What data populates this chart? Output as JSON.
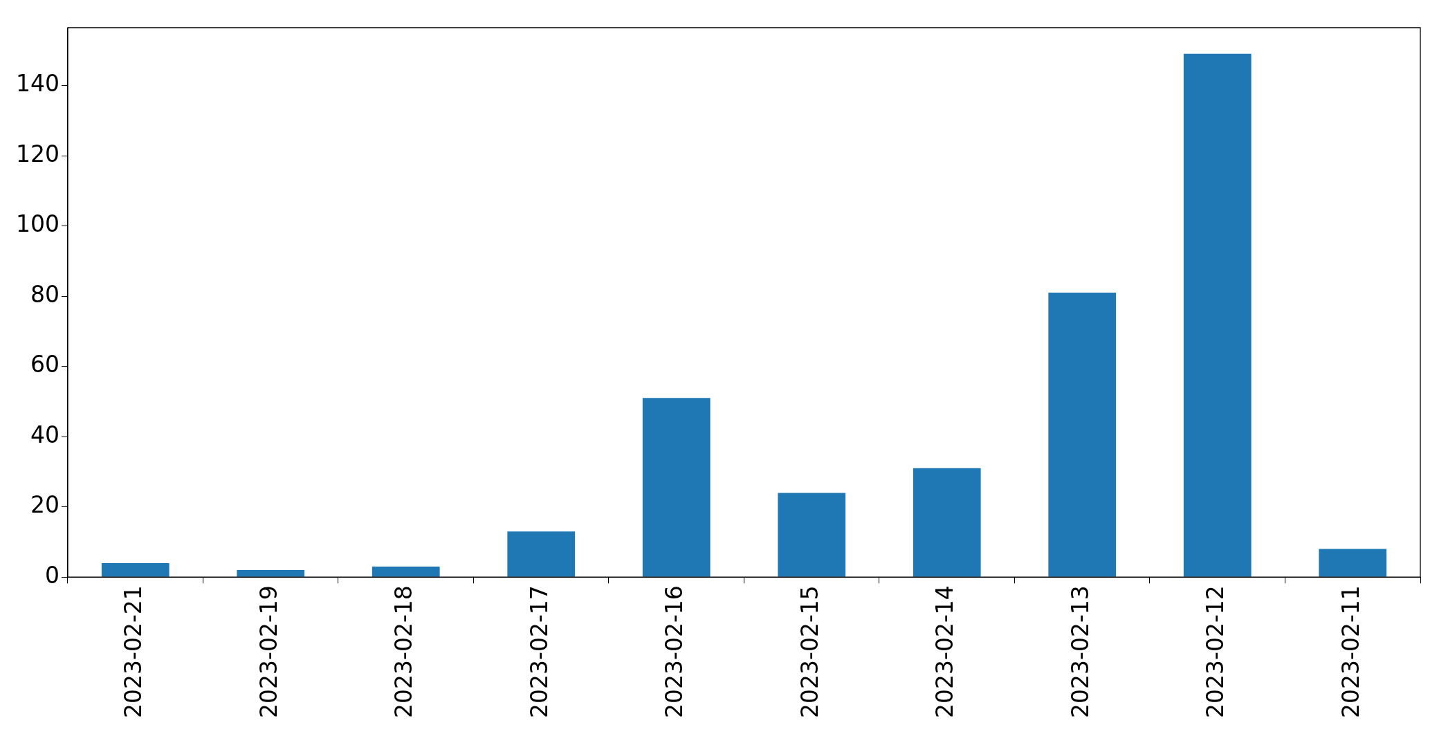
{
  "chart_data": {
    "type": "bar",
    "categories": [
      "2023-02-21",
      "2023-02-19",
      "2023-02-18",
      "2023-02-17",
      "2023-02-16",
      "2023-02-15",
      "2023-02-14",
      "2023-02-13",
      "2023-02-12",
      "2023-02-11"
    ],
    "values": [
      4,
      2,
      3,
      13,
      51,
      24,
      31,
      81,
      149,
      8
    ],
    "color": "#1f77b4",
    "ylim": [
      0,
      156.45
    ],
    "yticks": [
      0,
      20,
      40,
      60,
      80,
      100,
      120,
      140
    ],
    "grid": false,
    "legend": false
  }
}
